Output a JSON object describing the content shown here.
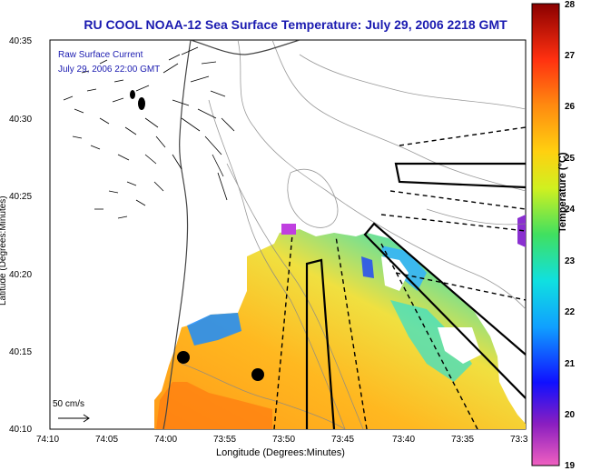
{
  "title": "RU COOL  NOAA-12  Sea Surface Temperature:  July 29, 2006 2218 GMT",
  "legend": {
    "line1": "Raw Surface Current",
    "line2": "July 29, 2006 22:00 GMT",
    "scale_label": "50 cm/s"
  },
  "axes": {
    "xlabel": "Longitude (Degrees:Minutes)",
    "ylabel": "Latitude (Degrees:Minutes)",
    "x_ticks": [
      "74:10",
      "74:05",
      "74:00",
      "73:55",
      "73:50",
      "73:45",
      "73:40",
      "73:35",
      "73:3"
    ],
    "y_ticks": [
      "40:35",
      "40:30",
      "40:25",
      "40:20",
      "40:15",
      "40:10"
    ]
  },
  "colorbar": {
    "label": "Temperature (°C)",
    "ticks": [
      "28",
      "27",
      "26",
      "25",
      "24",
      "23",
      "22",
      "21",
      "20",
      "19"
    ],
    "min": 19,
    "max": 28
  },
  "colors": {
    "title": "#1a1ab0",
    "land": "#ffffff"
  }
}
